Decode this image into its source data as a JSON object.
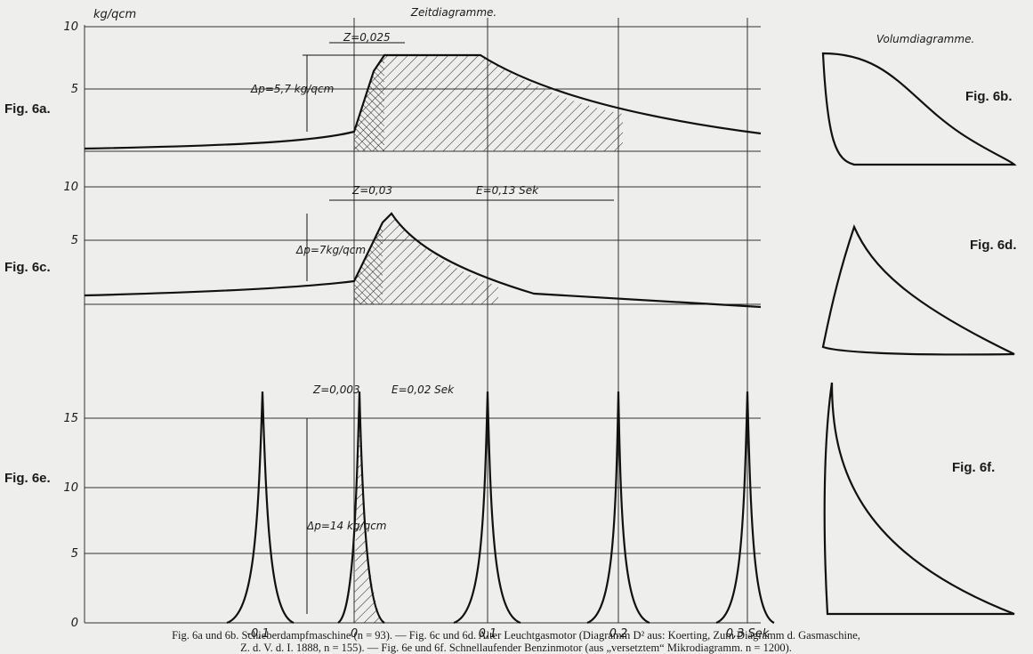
{
  "title": "Zeitdiagramme.",
  "volume_title": "Volumdiagramme.",
  "fig_labels": {
    "a": "Fig. 6a.",
    "b": "Fig. 6b.",
    "c": "Fig. 6c.",
    "d": "Fig. 6d.",
    "e": "Fig. 6e.",
    "f": "Fig. 6f."
  },
  "unit": "kg/qcm",
  "diagram_a": {
    "yticks": [
      "10",
      "5"
    ],
    "z": "Z=0,025",
    "dp": "Δp=5,7 kg/qcm"
  },
  "diagram_c": {
    "yticks": [
      "10",
      "5"
    ],
    "z": "Z=0,03",
    "e": "E=0,13 Sek",
    "dp": "Δp=7kg/qcm"
  },
  "diagram_e": {
    "yticks": [
      "15",
      "10",
      "5",
      "0"
    ],
    "z": "Z=0,003",
    "e": "E=0,02 Sek",
    "dp": "Δp=14 kg/qcm"
  },
  "xticks": [
    "-0,1",
    "0",
    "0,1",
    "0,2",
    "0,3 Sek"
  ],
  "caption": [
    "Fig. 6a und 6b.  Schieberdampfmaschine (n = 93). — Fig. 6c und 6d.  Alter Leuchtgasmotor (Diagramm D² aus: Koerting, Zum Diagramm d. Gasmaschine,",
    "Z. d. V. d. I. 1888, n = 155). — Fig. 6e und 6f.  Schnellaufender Benzinmotor (aus „versetztem“ Mikrodiagramm.  n = 1200)."
  ]
}
